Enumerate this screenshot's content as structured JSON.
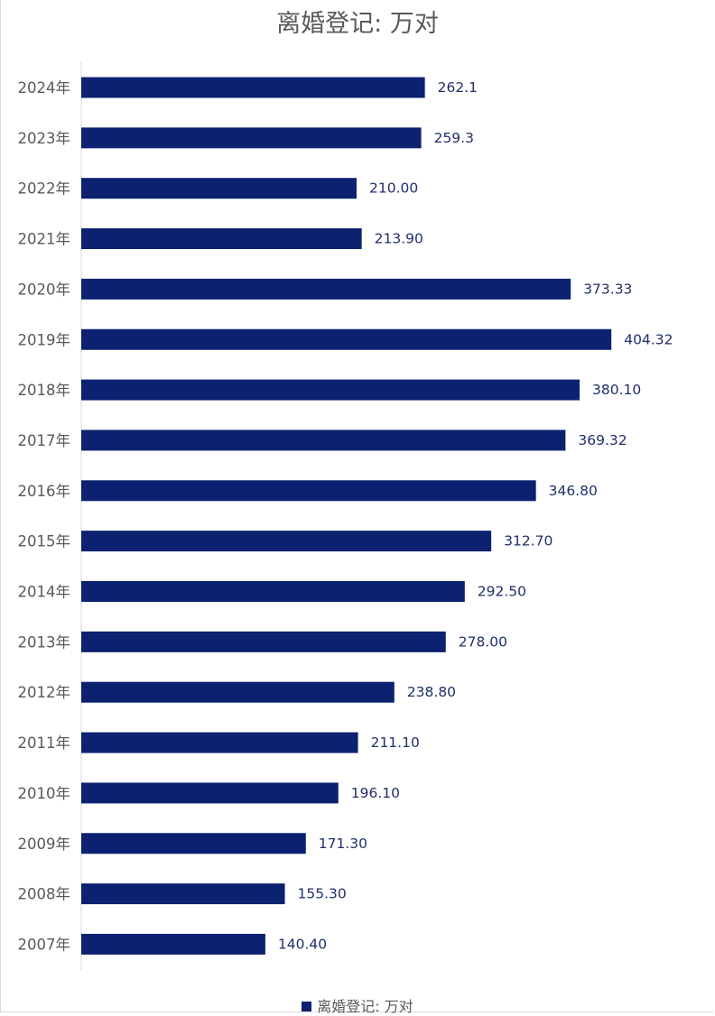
{
  "chart_data": {
    "type": "bar",
    "orientation": "horizontal",
    "title": "离婚登记: 万对",
    "categories": [
      "2024年",
      "2023年",
      "2022年",
      "2021年",
      "2020年",
      "2019年",
      "2018年",
      "2017年",
      "2016年",
      "2015年",
      "2014年",
      "2013年",
      "2012年",
      "2011年",
      "2010年",
      "2009年",
      "2008年",
      "2007年"
    ],
    "values": [
      262.1,
      259.3,
      210.0,
      213.9,
      373.33,
      404.32,
      380.1,
      369.32,
      346.8,
      312.7,
      292.5,
      278.0,
      238.8,
      211.1,
      196.1,
      171.3,
      155.3,
      140.4
    ],
    "value_labels": [
      "262.1",
      "259.3",
      "210.00",
      "213.90",
      "373.33",
      "404.32",
      "380.10",
      "369.32",
      "346.80",
      "312.70",
      "292.50",
      "278.00",
      "238.80",
      "211.10",
      "196.10",
      "171.30",
      "155.30",
      "140.40"
    ],
    "series": [
      {
        "name": "离婚登记: 万对",
        "color": "#0c2270"
      }
    ],
    "xlim": [
      0,
      409
    ],
    "legend": "bottom-center",
    "grid": false,
    "xlabel": "",
    "ylabel": ""
  }
}
